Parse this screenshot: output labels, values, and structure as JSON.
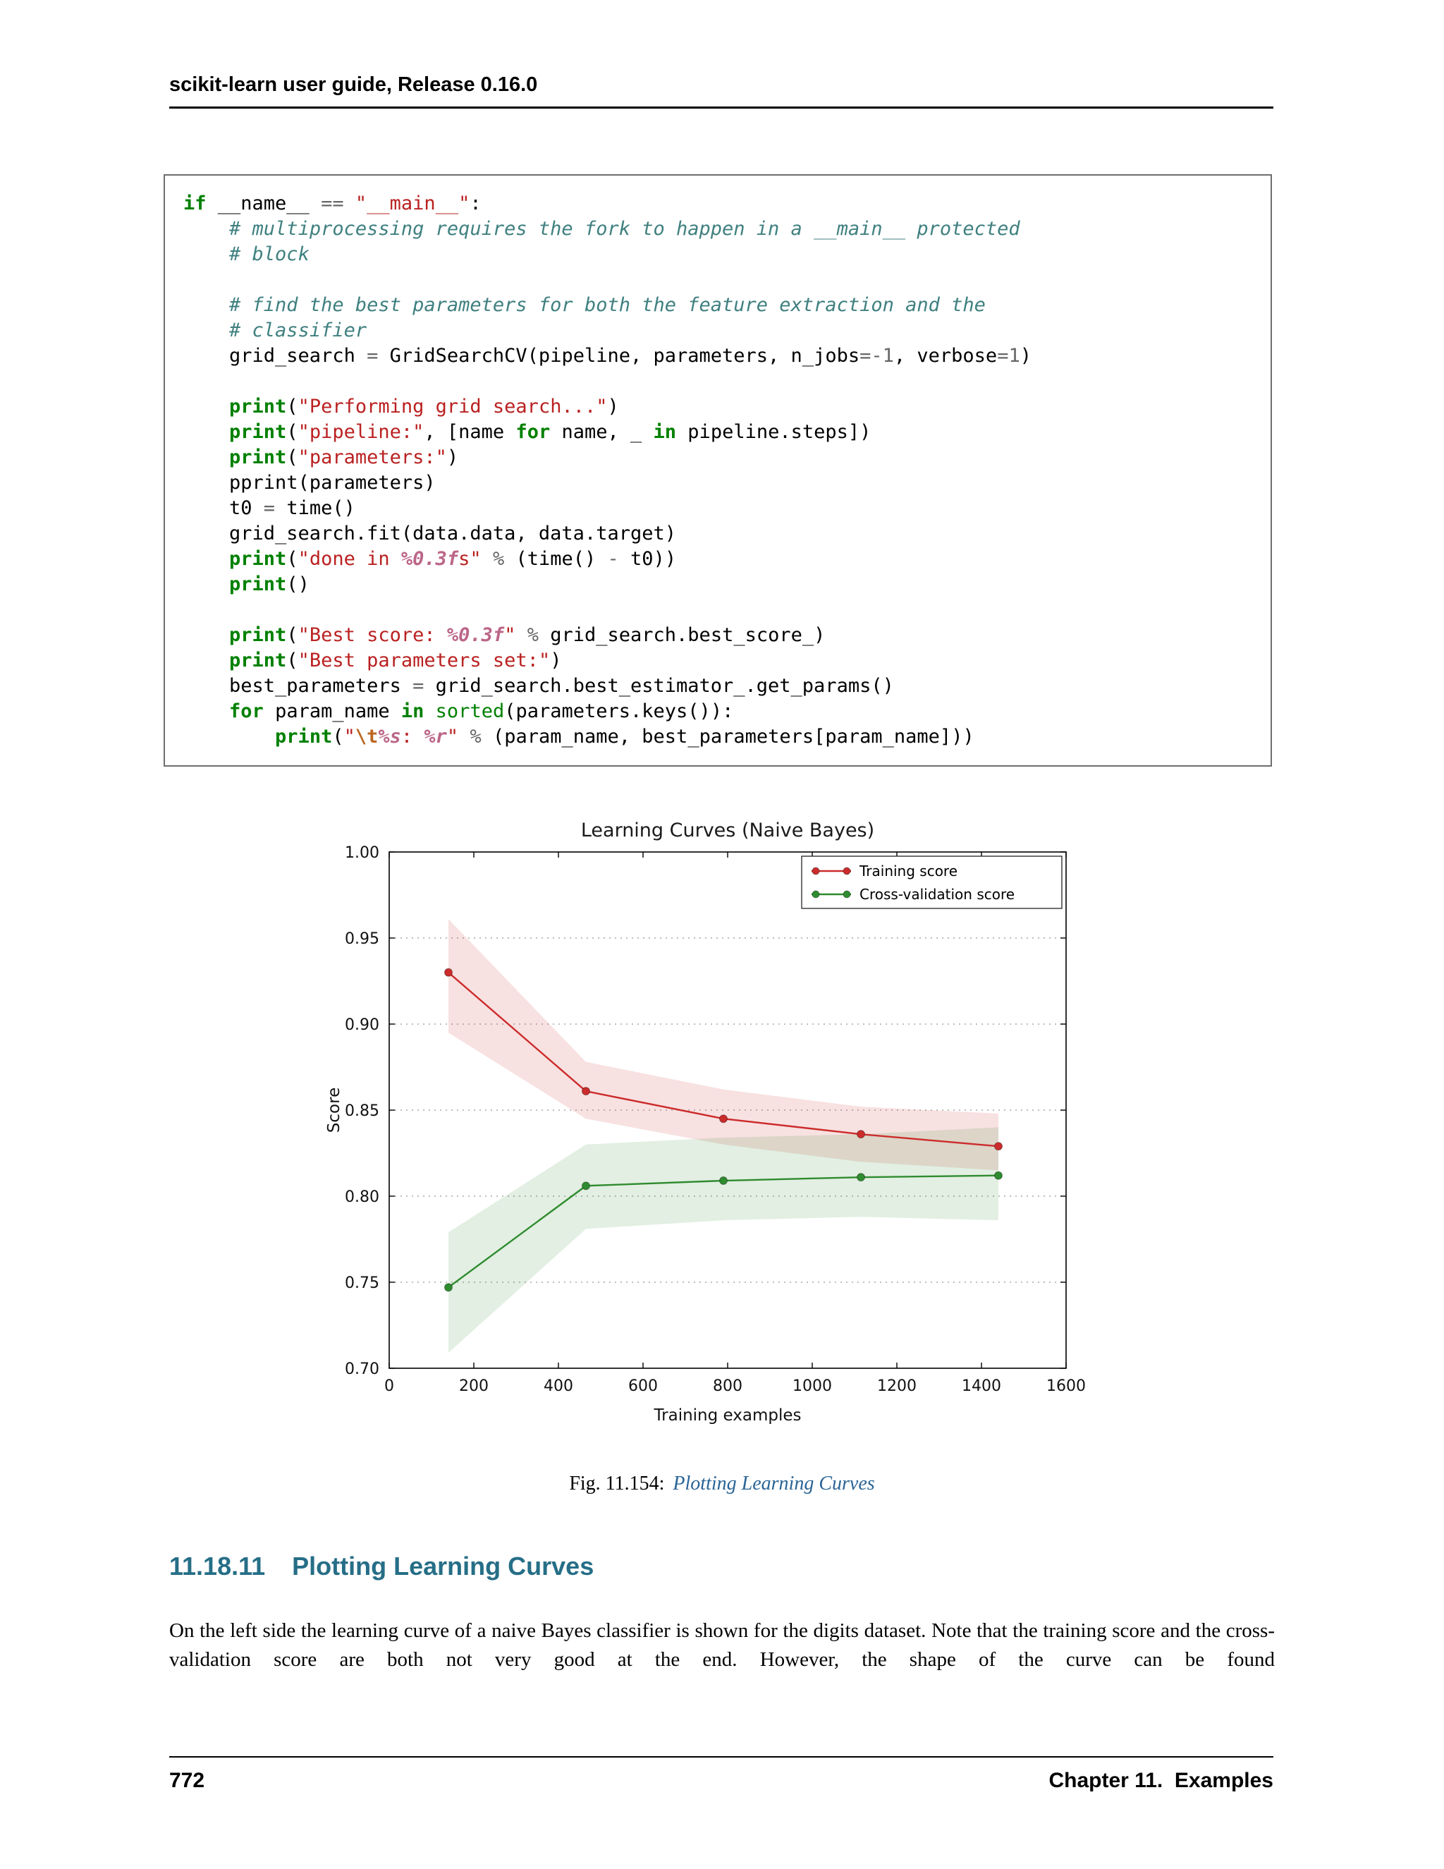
{
  "header": {
    "title": "scikit-learn user guide, Release 0.16.0"
  },
  "footer": {
    "page_number": "772",
    "chapter": "Chapter 11.  Examples"
  },
  "caption": {
    "prefix": "Fig. 11.154:",
    "link": "Plotting Learning Curves"
  },
  "section": {
    "number": "11.18.11",
    "title": "Plotting Learning Curves"
  },
  "body_text": "On the left side the learning curve of a naive Bayes classifier is shown for the digits dataset. Note that the training score and the cross-validation score are both not very good at the end. However, the shape of the curve can be found",
  "colors": {
    "heading": "#266e87",
    "link": "#2a6496",
    "keyword": "#008000",
    "string": "#BA2121",
    "comment": "#408080",
    "operator": "#666666",
    "interp": "#BB6688",
    "escape": "#BB6622"
  },
  "code": {
    "lines": [
      [
        [
          "k",
          "if"
        ],
        [
          "t",
          " __name__ "
        ],
        [
          "o",
          "=="
        ],
        [
          "t",
          " "
        ],
        [
          "s",
          "\"__main__\""
        ],
        [
          "t",
          ":"
        ]
      ],
      [
        [
          "t",
          "    "
        ],
        [
          "c",
          "# multiprocessing requires the fork to happen in a __main__ protected"
        ]
      ],
      [
        [
          "t",
          "    "
        ],
        [
          "c",
          "# block"
        ]
      ],
      [],
      [
        [
          "t",
          "    "
        ],
        [
          "c",
          "# find the best parameters for both the feature extraction and the"
        ]
      ],
      [
        [
          "t",
          "    "
        ],
        [
          "c",
          "# classifier"
        ]
      ],
      [
        [
          "t",
          "    grid_search "
        ],
        [
          "o",
          "="
        ],
        [
          "t",
          " GridSearchCV(pipeline, parameters, n_jobs"
        ],
        [
          "o",
          "="
        ],
        [
          "o",
          "-"
        ],
        [
          "m",
          "1"
        ],
        [
          "t",
          ", verbose"
        ],
        [
          "o",
          "="
        ],
        [
          "m",
          "1"
        ],
        [
          "t",
          ")"
        ]
      ],
      [],
      [
        [
          "t",
          "    "
        ],
        [
          "k",
          "print"
        ],
        [
          "t",
          "("
        ],
        [
          "s",
          "\"Performing grid search...\""
        ],
        [
          "t",
          ")"
        ]
      ],
      [
        [
          "t",
          "    "
        ],
        [
          "k",
          "print"
        ],
        [
          "t",
          "("
        ],
        [
          "s",
          "\"pipeline:\""
        ],
        [
          "t",
          ", [name "
        ],
        [
          "k",
          "for"
        ],
        [
          "t",
          " name, _ "
        ],
        [
          "k",
          "in"
        ],
        [
          "t",
          " pipeline.steps])"
        ]
      ],
      [
        [
          "t",
          "    "
        ],
        [
          "k",
          "print"
        ],
        [
          "t",
          "("
        ],
        [
          "s",
          "\"parameters:\""
        ],
        [
          "t",
          ")"
        ]
      ],
      [
        [
          "t",
          "    pprint(parameters)"
        ]
      ],
      [
        [
          "t",
          "    t0 "
        ],
        [
          "o",
          "="
        ],
        [
          "t",
          " time()"
        ]
      ],
      [
        [
          "t",
          "    grid_search.fit(data.data, data.target)"
        ]
      ],
      [
        [
          "t",
          "    "
        ],
        [
          "k",
          "print"
        ],
        [
          "t",
          "("
        ],
        [
          "s",
          "\"done in "
        ],
        [
          "si",
          "%0.3f"
        ],
        [
          "s",
          "s\""
        ],
        [
          "t",
          " "
        ],
        [
          "o",
          "%"
        ],
        [
          "t",
          " (time() "
        ],
        [
          "o",
          "-"
        ],
        [
          "t",
          " t0))"
        ]
      ],
      [
        [
          "t",
          "    "
        ],
        [
          "k",
          "print"
        ],
        [
          "t",
          "()"
        ]
      ],
      [],
      [
        [
          "t",
          "    "
        ],
        [
          "k",
          "print"
        ],
        [
          "t",
          "("
        ],
        [
          "s",
          "\"Best score: "
        ],
        [
          "si",
          "%0.3f"
        ],
        [
          "s",
          "\""
        ],
        [
          "t",
          " "
        ],
        [
          "o",
          "%"
        ],
        [
          "t",
          " grid_search.best_score_)"
        ]
      ],
      [
        [
          "t",
          "    "
        ],
        [
          "k",
          "print"
        ],
        [
          "t",
          "("
        ],
        [
          "s",
          "\"Best parameters set:\""
        ],
        [
          "t",
          ")"
        ]
      ],
      [
        [
          "t",
          "    best_parameters "
        ],
        [
          "o",
          "="
        ],
        [
          "t",
          " grid_search.best_estimator_.get_params()"
        ]
      ],
      [
        [
          "t",
          "    "
        ],
        [
          "k",
          "for"
        ],
        [
          "t",
          " param_name "
        ],
        [
          "k",
          "in"
        ],
        [
          "t",
          " "
        ],
        [
          "nb",
          "sorted"
        ],
        [
          "t",
          "(parameters.keys()):"
        ]
      ],
      [
        [
          "t",
          "        "
        ],
        [
          "k",
          "print"
        ],
        [
          "t",
          "("
        ],
        [
          "s",
          "\""
        ],
        [
          "se",
          "\\t"
        ],
        [
          "si",
          "%s"
        ],
        [
          "s",
          ": "
        ],
        [
          "si",
          "%r"
        ],
        [
          "s",
          "\""
        ],
        [
          "t",
          " "
        ],
        [
          "o",
          "%"
        ],
        [
          "t",
          " (param_name, best_parameters[param_name]))"
        ]
      ]
    ]
  },
  "chart_data": {
    "type": "line",
    "title": "Learning Curves (Naive Bayes)",
    "xlabel": "Training examples",
    "ylabel": "Score",
    "xlim": [
      0,
      1600
    ],
    "ylim": [
      0.7,
      1.0
    ],
    "xticks": [
      0,
      200,
      400,
      600,
      800,
      1000,
      1200,
      1400,
      1600
    ],
    "yticks": [
      0.7,
      0.75,
      0.8,
      0.85,
      0.9,
      0.95,
      1.0
    ],
    "ytick_labels": [
      "0.70",
      "0.75",
      "0.80",
      "0.85",
      "0.90",
      "0.95",
      "1.00"
    ],
    "grid": "horizontal-dotted",
    "legend_position": "upper-right",
    "x": [
      140,
      465,
      790,
      1115,
      1440
    ],
    "series": [
      {
        "name": "Training score",
        "color": "#cc2b2b",
        "values": [
          0.93,
          0.861,
          0.845,
          0.836,
          0.829
        ],
        "band_upper": [
          0.961,
          0.878,
          0.862,
          0.852,
          0.848
        ],
        "band_lower": [
          0.895,
          0.845,
          0.83,
          0.82,
          0.815
        ],
        "band_opacity": 0.14
      },
      {
        "name": "Cross-validation score",
        "color": "#2f8b2f",
        "values": [
          0.747,
          0.806,
          0.809,
          0.811,
          0.812
        ],
        "band_upper": [
          0.779,
          0.83,
          0.834,
          0.836,
          0.84
        ],
        "band_lower": [
          0.709,
          0.781,
          0.786,
          0.788,
          0.786
        ],
        "band_opacity": 0.14
      }
    ]
  }
}
